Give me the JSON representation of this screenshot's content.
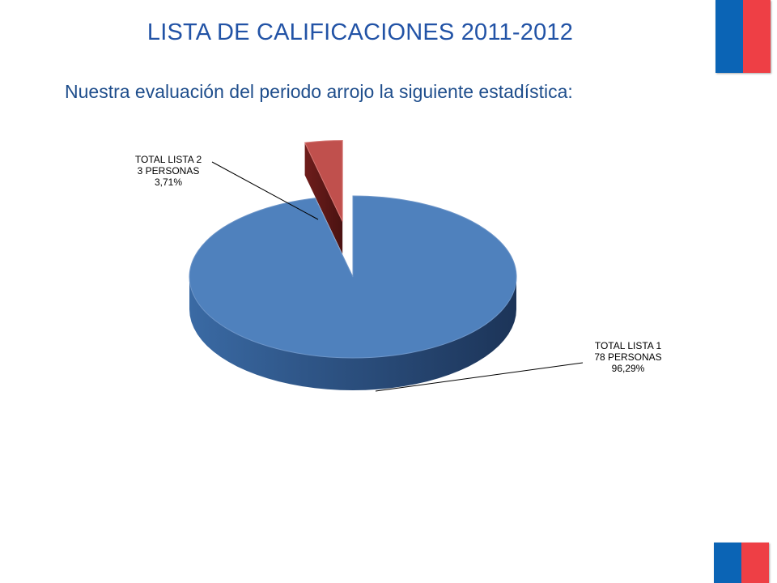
{
  "title": "LISTA DE CALIFICACIONES 2011-2012",
  "subtitle": "Nuestra evaluación del periodo arrojo la siguiente estadística:",
  "brand_colors": {
    "blue": "#0b64b5",
    "red": "#ee3f45"
  },
  "chart_data": {
    "type": "pie",
    "style": "3d-exploded",
    "slices": [
      {
        "label": "TOTAL LISTA 1",
        "count_text": "78 PERSONAS",
        "pct_text": "96,29%",
        "value": 78,
        "percent": 96.29,
        "color": "#4f81bd"
      },
      {
        "label": "TOTAL LISTA 2",
        "count_text": "3 PERSONAS",
        "pct_text": "3,71%",
        "value": 3,
        "percent": 3.71,
        "color": "#c0504d"
      }
    ]
  }
}
